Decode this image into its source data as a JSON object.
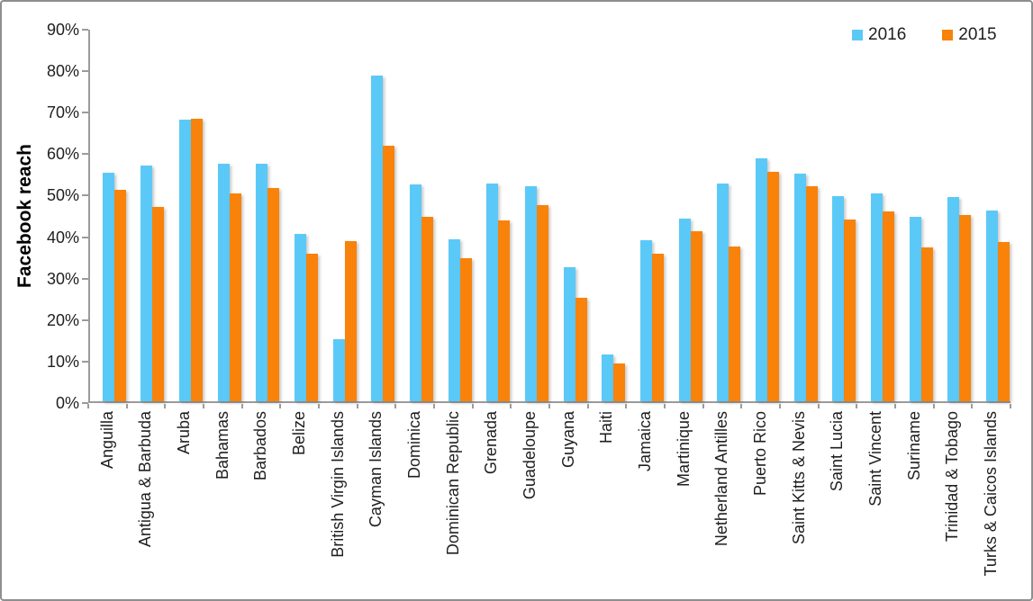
{
  "chart_data": {
    "type": "bar",
    "title": "",
    "ylabel": "Facebook reach",
    "xlabel": "",
    "ylim": [
      0,
      90
    ],
    "ytick_step": 10,
    "yticks": [
      "0%",
      "10%",
      "20%",
      "30%",
      "40%",
      "50%",
      "60%",
      "70%",
      "80%",
      "90%"
    ],
    "grid": false,
    "legend_position": "top-right",
    "categories": [
      "Anguilla",
      "Antigua & Barbuda",
      "Aruba",
      "Bahamas",
      "Barbados",
      "Belize",
      "British Virgin Islands",
      "Cayman Islands",
      "Dominica",
      "Dominican Republic",
      "Grenada",
      "Guadeloupe",
      "Guyana",
      "Haiti",
      "Jamaica",
      "Martinique",
      "Netherland Antilles",
      "Puerto Rico",
      "Saint Kitts & Nevis",
      "Saint Lucia",
      "Saint Vincent",
      "Suriname",
      "Trinidad & Tobago",
      "Turks & Caicos Islands"
    ],
    "series": [
      {
        "name": "2016",
        "color": "#5BC9F7",
        "values": [
          55.0,
          56.8,
          67.8,
          57.3,
          57.3,
          40.4,
          14.9,
          78.6,
          52.3,
          39.1,
          52.4,
          51.9,
          32.4,
          11.2,
          38.9,
          44.0,
          52.4,
          58.5,
          54.8,
          49.5,
          50.2,
          44.4,
          49.2,
          45.9
        ]
      },
      {
        "name": "2015",
        "color": "#F8820A",
        "values": [
          51.0,
          46.8,
          68.1,
          50.2,
          51.4,
          35.5,
          38.7,
          61.7,
          44.5,
          34.5,
          43.5,
          47.3,
          25.0,
          9.1,
          35.5,
          41.0,
          37.4,
          55.4,
          51.8,
          43.9,
          45.8,
          37.1,
          44.8,
          38.5
        ]
      }
    ]
  },
  "colors": {
    "axis": "#9b9b9b",
    "text": "#1f1f1f",
    "frame_border": "#8e8e8e"
  }
}
